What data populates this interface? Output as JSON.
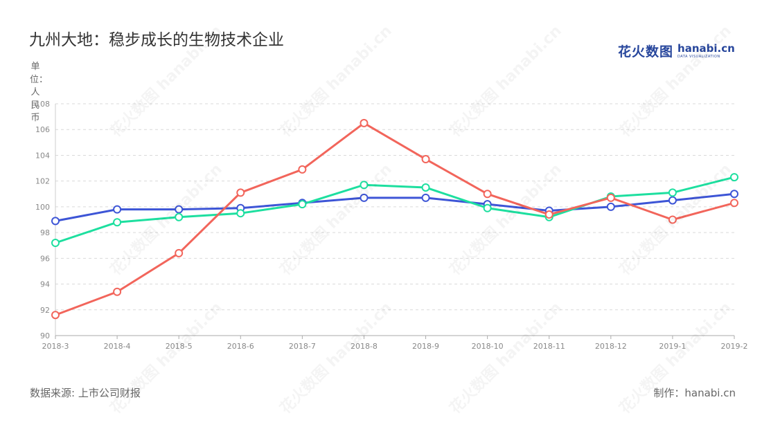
{
  "title": "九州大地：稳步成长的生物技术企业",
  "logo": {
    "cn": "花火数图",
    "en": "hanabi.cn",
    "en_sub": "DATA VISUALIZATION"
  },
  "source": "数据来源: 上市公司财报",
  "credit": "制作：hanabi.cn",
  "chart_data": {
    "type": "line",
    "title": "九州大地：稳步成长的生物技术企业",
    "ylabel": "单位：人民币",
    "xlabel": "",
    "categories": [
      "2018-3",
      "2018-4",
      "2018-5",
      "2018-6",
      "2018-7",
      "2018-8",
      "2018-9",
      "2018-10",
      "2018-11",
      "2018-12",
      "2019-1",
      "2019-2"
    ],
    "ylim": [
      90,
      108
    ],
    "yticks": [
      "90",
      "92",
      "94",
      "96",
      "98",
      "100",
      "102",
      "104",
      "106",
      "108"
    ],
    "grid": true,
    "legend": "none",
    "series": [
      {
        "color": "#3d55d6",
        "values": [
          98.9,
          99.8,
          99.8,
          99.9,
          100.3,
          100.7,
          100.7,
          100.2,
          99.7,
          100.0,
          100.5,
          101.0
        ]
      },
      {
        "color": "#1ddf9f",
        "values": [
          97.2,
          98.8,
          99.2,
          99.5,
          100.2,
          101.7,
          101.5,
          99.9,
          99.2,
          100.8,
          101.1,
          102.3
        ]
      },
      {
        "color": "#f2655b",
        "values": [
          91.6,
          93.4,
          96.4,
          101.1,
          102.9,
          106.5,
          103.7,
          101.0,
          99.4,
          100.7,
          99.0,
          100.3
        ]
      }
    ]
  }
}
